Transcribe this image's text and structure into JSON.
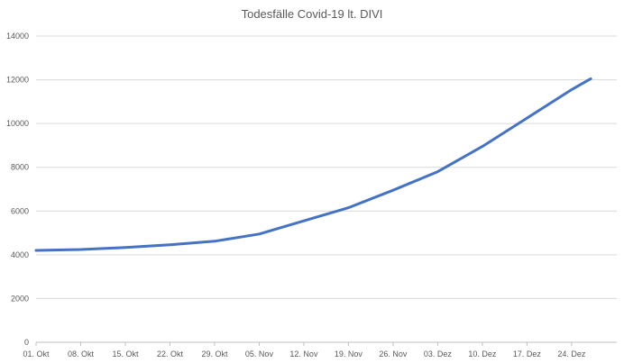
{
  "chart_data": {
    "type": "line",
    "title": "Todesfälle Covid-19 lt. DIVI",
    "xlabel": "",
    "ylabel": "",
    "ylim": [
      0,
      14000
    ],
    "y_ticks": [
      "0",
      "2000",
      "4000",
      "6000",
      "8000",
      "10000",
      "12000",
      "14000"
    ],
    "x_tick_labels": [
      "01. Okt",
      "08. Okt",
      "15. Okt",
      "22. Okt",
      "29. Okt",
      "05. Nov",
      "12. Nov",
      "19. Nov",
      "26. Nov",
      "03. Dez",
      "10. Dez",
      "17. Dez",
      "24. Dez"
    ],
    "grid": "horizontal",
    "legend": "none",
    "series": [
      {
        "color": "#4472c4",
        "points": [
          [
            "01. Okt",
            4200
          ],
          [
            "08. Okt",
            4240
          ],
          [
            "15. Okt",
            4330
          ],
          [
            "22. Okt",
            4460
          ],
          [
            "29. Okt",
            4620
          ],
          [
            "05. Nov",
            4950
          ],
          [
            "12. Nov",
            5550
          ],
          [
            "19. Nov",
            6150
          ],
          [
            "26. Nov",
            6950
          ],
          [
            "03. Dez",
            7800
          ],
          [
            "10. Dez",
            8950
          ],
          [
            "17. Dez",
            10250
          ],
          [
            "24. Dez",
            11550
          ],
          [
            "27. Dez",
            12050
          ]
        ]
      }
    ]
  }
}
